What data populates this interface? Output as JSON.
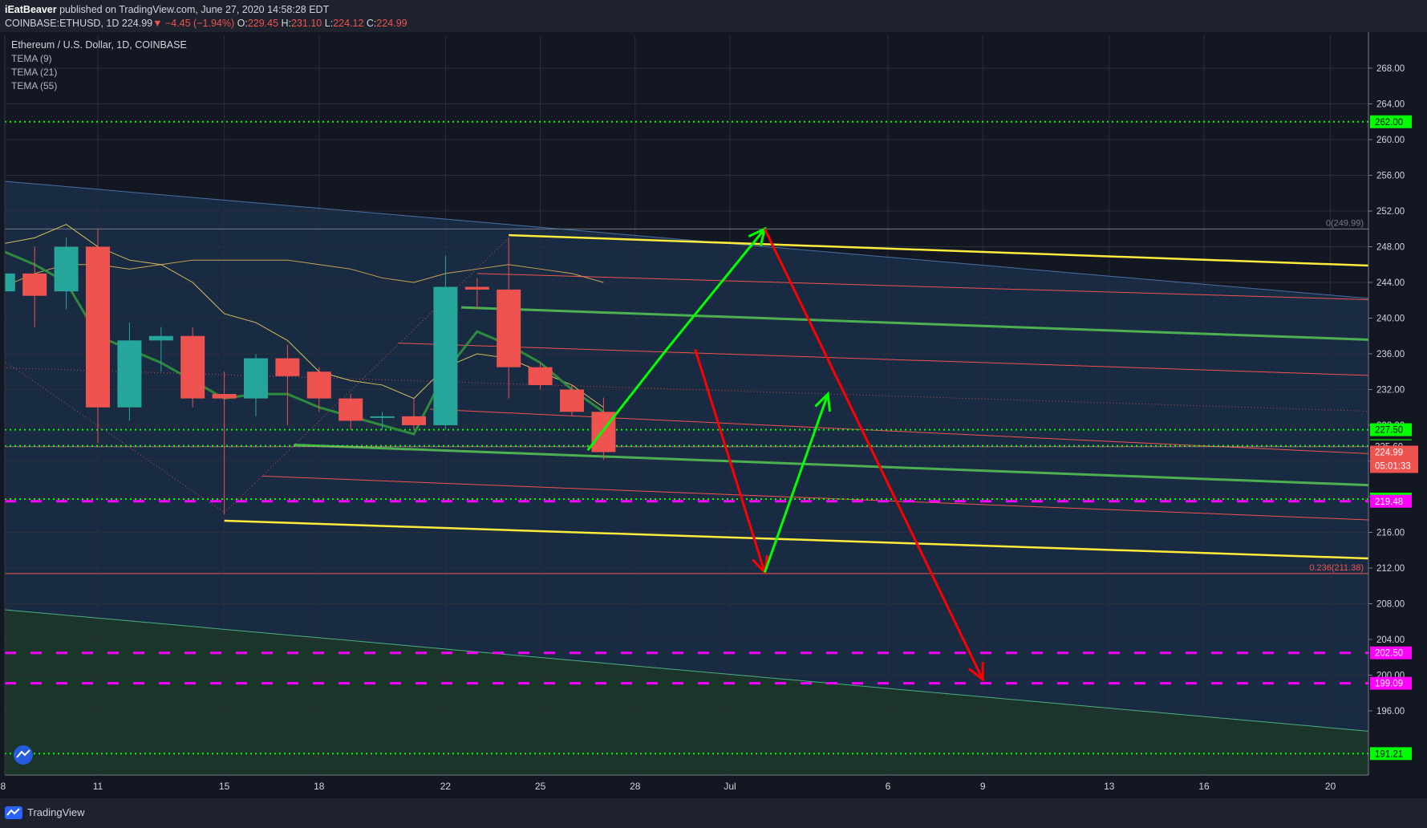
{
  "header": {
    "author": "iEatBeaver",
    "published": " published on TradingView.com, June 27, 2020 14:58:28 EDT",
    "symbol": "COINBASE:ETHUSD, 1D",
    "last": "224.99",
    "change": "▼ −4.45 (−1.94%)",
    "o_label": "O:",
    "o": "229.45",
    "h_label": "H:",
    "h": "231.10",
    "l_label": "L:",
    "l": "224.12",
    "c_label": "C:",
    "c": "224.99"
  },
  "footer": {
    "brand": "TradingView"
  },
  "colors": {
    "bull": "#26a69a",
    "bear": "#ef5350",
    "yellow": "#ffeb3b",
    "green": "#4caf50",
    "brightGreen": "#00ff00",
    "red": "#ff0000",
    "magenta": "#ff00ff",
    "blue": "#2962ff"
  },
  "chart_data": {
    "type": "candlestick",
    "title": "Ethereum / U.S. Dollar, 1D, COINBASE",
    "legend": [
      "TEMA (9)",
      "TEMA (21)",
      "TEMA (55)"
    ],
    "ylim": [
      190,
      272
    ],
    "y_ticks": [
      196,
      200,
      204,
      208,
      212,
      216,
      220,
      224,
      228,
      232,
      236,
      240,
      244,
      248,
      252,
      256,
      260,
      264,
      268
    ],
    "x_ticks": [
      {
        "d": 8,
        "label": "8"
      },
      {
        "d": 11,
        "label": "11"
      },
      {
        "d": 15,
        "label": "15"
      },
      {
        "d": 18,
        "label": "18"
      },
      {
        "d": 22,
        "label": "22"
      },
      {
        "d": 25,
        "label": "25"
      },
      {
        "d": 28,
        "label": "28"
      },
      {
        "d": 31,
        "label": "Jul"
      },
      {
        "d": 36,
        "label": "6"
      },
      {
        "d": 39,
        "label": "9"
      },
      {
        "d": 43,
        "label": "13"
      },
      {
        "d": 46,
        "label": "16"
      },
      {
        "d": 50,
        "label": "20"
      }
    ],
    "candles": [
      {
        "d": 8,
        "o": 243,
        "h": 246,
        "l": 242,
        "c": 245
      },
      {
        "d": 9,
        "o": 245,
        "h": 248,
        "l": 239,
        "c": 242.5
      },
      {
        "d": 10,
        "o": 243,
        "h": 249,
        "l": 241,
        "c": 248
      },
      {
        "d": 11,
        "o": 248,
        "h": 250,
        "l": 226,
        "c": 230
      },
      {
        "d": 12,
        "o": 230,
        "h": 239.5,
        "l": 228.5,
        "c": 237.5
      },
      {
        "d": 13,
        "o": 237.5,
        "h": 239,
        "l": 234,
        "c": 238
      },
      {
        "d": 14,
        "o": 238,
        "h": 239,
        "l": 230,
        "c": 231
      },
      {
        "d": 15,
        "o": 231.5,
        "h": 234,
        "l": 218,
        "c": 231
      },
      {
        "d": 16,
        "o": 231,
        "h": 236,
        "l": 229,
        "c": 235.5
      },
      {
        "d": 17,
        "o": 235.5,
        "h": 237,
        "l": 228,
        "c": 233.5
      },
      {
        "d": 18,
        "o": 234,
        "h": 234.5,
        "l": 229.5,
        "c": 231
      },
      {
        "d": 19,
        "o": 231,
        "h": 231.5,
        "l": 227.5,
        "c": 228.5
      },
      {
        "d": 20,
        "o": 229,
        "h": 229.5,
        "l": 227.5,
        "c": 229
      },
      {
        "d": 21,
        "o": 229,
        "h": 231,
        "l": 227.5,
        "c": 228
      },
      {
        "d": 22,
        "o": 228,
        "h": 247,
        "l": 227.5,
        "c": 243.5
      },
      {
        "d": 23,
        "o": 243.5,
        "h": 244.5,
        "l": 241,
        "c": 243.2
      },
      {
        "d": 24,
        "o": 243.2,
        "h": 249,
        "l": 231,
        "c": 234.5
      },
      {
        "d": 25,
        "o": 234.5,
        "h": 235,
        "l": 232,
        "c": 232.5
      },
      {
        "d": 26,
        "o": 232,
        "h": 232.5,
        "l": 229,
        "c": 229.5
      },
      {
        "d": 27,
        "o": 229.5,
        "h": 231.1,
        "l": 224.12,
        "c": 224.99
      }
    ],
    "tema9": [
      [
        7.5,
        248
      ],
      [
        8,
        247.5
      ],
      [
        9,
        246
      ],
      [
        10,
        244
      ],
      [
        11,
        238
      ],
      [
        12,
        236.5
      ],
      [
        13,
        235
      ],
      [
        14,
        233
      ],
      [
        15,
        231
      ],
      [
        16,
        231.5
      ],
      [
        17,
        231.5
      ],
      [
        18,
        230
      ],
      [
        19,
        229
      ],
      [
        20,
        228
      ],
      [
        21,
        227
      ],
      [
        22,
        234
      ],
      [
        23,
        238.5
      ],
      [
        24,
        237
      ],
      [
        25,
        235
      ],
      [
        26,
        232
      ],
      [
        27,
        229.5
      ]
    ],
    "tema21": [
      [
        7.5,
        248
      ],
      [
        9,
        249
      ],
      [
        10,
        250.5
      ],
      [
        11,
        248
      ],
      [
        12,
        246.5
      ],
      [
        13,
        246
      ],
      [
        14,
        244
      ],
      [
        15,
        240.5
      ],
      [
        16,
        239.5
      ],
      [
        17,
        237.5
      ],
      [
        18,
        234
      ],
      [
        19,
        233
      ],
      [
        20,
        232.5
      ],
      [
        21,
        231
      ],
      [
        22,
        234.5
      ],
      [
        23,
        236
      ],
      [
        24,
        235.5
      ],
      [
        25,
        234
      ],
      [
        26,
        232.5
      ],
      [
        27,
        230
      ]
    ],
    "tema55": [
      [
        7.5,
        241
      ],
      [
        8,
        243.5
      ],
      [
        9,
        245
      ],
      [
        10,
        246
      ],
      [
        11,
        246
      ],
      [
        12,
        245.5
      ],
      [
        13,
        246
      ],
      [
        14,
        246.5
      ],
      [
        15,
        246.5
      ],
      [
        16,
        246.5
      ],
      [
        17,
        246.5
      ],
      [
        18,
        246
      ],
      [
        19,
        245.5
      ],
      [
        20,
        244.5
      ],
      [
        21,
        244
      ],
      [
        22,
        245
      ],
      [
        23,
        245.5
      ],
      [
        24,
        246
      ],
      [
        25,
        245.5
      ],
      [
        26,
        245
      ],
      [
        27,
        244
      ]
    ],
    "channels": [
      {
        "kind": "blue-upper",
        "from": [
          7.5,
          255.5
        ],
        "to": [
          51.9,
          242
        ]
      },
      {
        "kind": "blue-lower",
        "from": [
          7.5,
          207.5
        ],
        "to": [
          51.9,
          193.5
        ]
      },
      {
        "kind": "yellow",
        "from": [
          24,
          249.3
        ],
        "to": [
          51.9,
          245.8
        ]
      },
      {
        "kind": "yellow",
        "from": [
          15,
          217.3
        ],
        "to": [
          51.9,
          213
        ]
      },
      {
        "kind": "green",
        "from": [
          22.5,
          241.2
        ],
        "to": [
          51.9,
          237.5
        ]
      },
      {
        "kind": "green",
        "from": [
          17.2,
          225.8
        ],
        "to": [
          51.9,
          221.2
        ]
      },
      {
        "kind": "thin-red",
        "from": [
          23,
          245
        ],
        "to": [
          51.9,
          242
        ]
      },
      {
        "kind": "thin-red",
        "from": [
          20.5,
          237.2
        ],
        "to": [
          51.9,
          233.5
        ]
      },
      {
        "kind": "thin-red",
        "from": [
          21.5,
          229.8
        ],
        "to": [
          51.9,
          224.7
        ]
      },
      {
        "kind": "thin-red",
        "from": [
          16.2,
          222.3
        ],
        "to": [
          51.9,
          217.3
        ]
      }
    ],
    "dotted_rays": [
      {
        "from": [
          7.5,
          236.5
        ],
        "to": [
          15,
          218.2
        ]
      },
      {
        "from": [
          15,
          218.2
        ],
        "to": [
          24,
          249
        ]
      },
      {
        "from": [
          7.5,
          234.5
        ],
        "to": [
          51.9,
          229.5
        ]
      }
    ],
    "arrows": [
      {
        "color": "green",
        "points": [
          [
            26.5,
            225.2
          ],
          [
            29,
            236.5
          ],
          [
            32.1,
            250
          ]
        ]
      },
      {
        "color": "red",
        "points": [
          [
            29.9,
            236.5
          ],
          [
            32.1,
            211.5
          ]
        ]
      },
      {
        "color": "green",
        "points": [
          [
            32.1,
            211.5
          ],
          [
            34.1,
            231.5
          ]
        ]
      },
      {
        "color": "red",
        "points": [
          [
            32.1,
            250
          ],
          [
            39,
            199.5
          ]
        ]
      }
    ],
    "h_levels": [
      {
        "value": 262.0,
        "label": "262.00",
        "style": "dotted-green"
      },
      {
        "value": 227.5,
        "label": "227.50",
        "style": "dotted-green"
      },
      {
        "value": 225.7,
        "label": "225.70",
        "style": "dotted-green"
      },
      {
        "value": 225.6,
        "label": "225.60",
        "style": "dark"
      },
      {
        "value": 219.73,
        "label": "219.73",
        "style": "dotted-green"
      },
      {
        "value": 219.48,
        "label": "219.48",
        "style": "dashed-magenta"
      },
      {
        "value": 202.5,
        "label": "202.50",
        "style": "dashed-magenta"
      },
      {
        "value": 199.09,
        "label": "199.09",
        "style": "dashed-magenta"
      },
      {
        "value": 191.21,
        "label": "191.21",
        "style": "dotted-green"
      }
    ],
    "fib_levels": [
      {
        "value": 249.99,
        "label": "0(249.99)"
      },
      {
        "value": 211.38,
        "label": "0.236(211.38)"
      }
    ],
    "price_label": {
      "value": 224.99,
      "label": "224.99",
      "countdown": "05:01:33"
    }
  }
}
